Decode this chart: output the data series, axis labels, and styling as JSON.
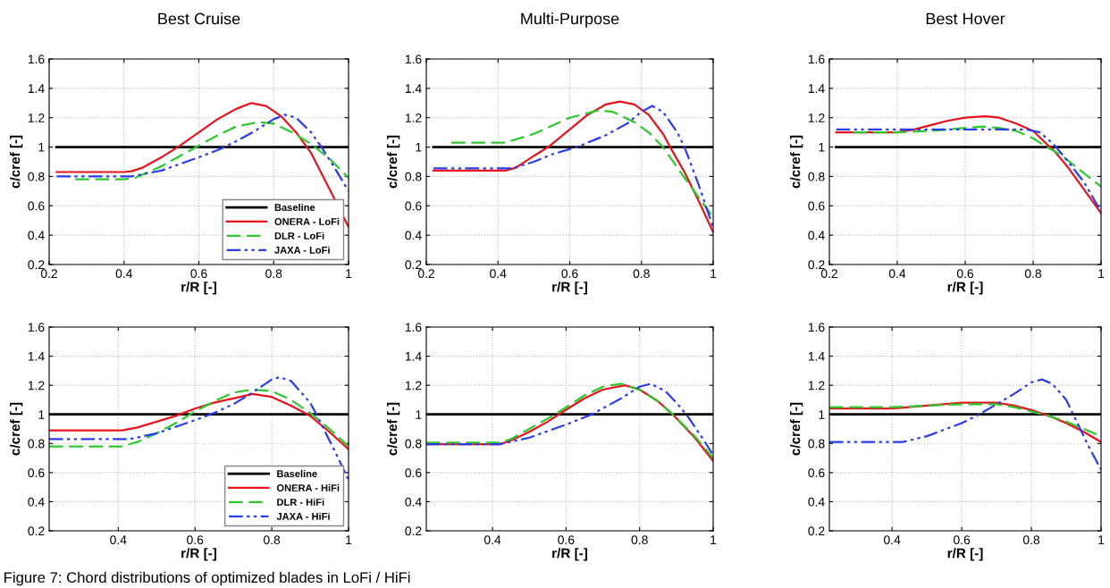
{
  "chart_data": [
    {
      "type": "line",
      "title": "Best Cruise",
      "xlabel": "r/R [-]",
      "ylabel": "c/cref [-]",
      "xlim": [
        0.2,
        1
      ],
      "xticks": [
        0.2,
        0.4,
        0.6,
        0.8,
        1
      ],
      "ylim": [
        0.2,
        1.6
      ],
      "yticks": [
        0.2,
        0.4,
        0.6,
        0.8,
        1,
        1.2,
        1.4,
        1.6
      ],
      "grid": true,
      "legend": "bottom right",
      "annotations": [
        "Figure 7: Chord distributions of optimized blades in LoFi / HiFi"
      ],
      "series": [
        {
          "name": "Baseline",
          "color": "#000000",
          "line_style": "solid",
          "x": [
            0.22,
            1
          ],
          "values": [
            1,
            1
          ]
        },
        {
          "name": "ONERA - LoFi",
          "color": "#e8141c",
          "line_style": "solid",
          "x": [
            0.22,
            0.3,
            0.4,
            0.42,
            0.45,
            0.5,
            0.55,
            0.6,
            0.65,
            0.7,
            0.74,
            0.78,
            0.82,
            0.86,
            0.9,
            0.95,
            1
          ],
          "values": [
            0.83,
            0.83,
            0.83,
            0.835,
            0.86,
            0.93,
            1.01,
            1.1,
            1.19,
            1.26,
            1.3,
            1.28,
            1.21,
            1.1,
            0.96,
            0.71,
            0.455
          ]
        },
        {
          "name": "DLR - LoFi",
          "color": "#2ec82e",
          "line_style": "dashed",
          "x": [
            0.27,
            0.3,
            0.4,
            0.43,
            0.5,
            0.55,
            0.6,
            0.65,
            0.7,
            0.76,
            0.8,
            0.85,
            0.9,
            0.95,
            1
          ],
          "values": [
            0.78,
            0.78,
            0.78,
            0.79,
            0.87,
            0.94,
            1.01,
            1.08,
            1.14,
            1.17,
            1.16,
            1.1,
            1.02,
            0.92,
            0.79
          ]
        },
        {
          "name": "JAXA - LoFi",
          "color": "#2a3cf0",
          "line_style": "dashdot",
          "x": [
            0.22,
            0.3,
            0.42,
            0.5,
            0.6,
            0.66,
            0.7,
            0.75,
            0.8,
            0.83,
            0.86,
            0.9,
            0.93,
            0.96,
            1
          ],
          "values": [
            0.8,
            0.8,
            0.8,
            0.84,
            0.93,
            0.99,
            1.04,
            1.11,
            1.19,
            1.22,
            1.2,
            1.1,
            0.99,
            0.87,
            0.7
          ]
        }
      ]
    },
    {
      "type": "line",
      "title": "Multi-Purpose",
      "xlabel": "r/R [-]",
      "ylabel": "c/cref [-]",
      "xlim": [
        0.2,
        1
      ],
      "xticks": [
        0.2,
        0.4,
        0.6,
        0.8,
        1
      ],
      "ylim": [
        0.2,
        1.6
      ],
      "yticks": [
        0.2,
        0.4,
        0.6,
        0.8,
        1,
        1.2,
        1.4,
        1.6
      ],
      "grid": true,
      "series": [
        {
          "color": "#000000",
          "line_style": "solid",
          "x": [
            0.22,
            1
          ],
          "values": [
            1,
            1
          ]
        },
        {
          "color": "#e8141c",
          "line_style": "solid",
          "x": [
            0.22,
            0.3,
            0.42,
            0.45,
            0.5,
            0.54,
            0.6,
            0.65,
            0.7,
            0.74,
            0.78,
            0.82,
            0.86,
            0.88,
            0.92,
            0.96,
            1
          ],
          "values": [
            0.84,
            0.84,
            0.84,
            0.86,
            0.94,
            1.0,
            1.12,
            1.22,
            1.29,
            1.31,
            1.29,
            1.22,
            1.09,
            1.0,
            0.83,
            0.63,
            0.42
          ]
        },
        {
          "color": "#2ec82e",
          "line_style": "dashed",
          "x": [
            0.27,
            0.35,
            0.42,
            0.5,
            0.6,
            0.68,
            0.72,
            0.78,
            0.82,
            0.86,
            0.9,
            0.95,
            1
          ],
          "values": [
            1.03,
            1.03,
            1.03,
            1.09,
            1.2,
            1.25,
            1.24,
            1.17,
            1.1,
            1.0,
            0.86,
            0.69,
            0.52
          ]
        },
        {
          "color": "#2a3cf0",
          "line_style": "dashdot",
          "x": [
            0.22,
            0.3,
            0.44,
            0.5,
            0.55,
            0.62,
            0.7,
            0.76,
            0.8,
            0.83,
            0.86,
            0.9,
            0.92,
            0.96,
            1
          ],
          "values": [
            0.855,
            0.855,
            0.855,
            0.9,
            0.95,
            1.0,
            1.08,
            1.16,
            1.24,
            1.28,
            1.24,
            1.1,
            1.0,
            0.74,
            0.45
          ]
        }
      ]
    },
    {
      "type": "line",
      "title": "Best Hover",
      "xlabel": "r/R [-]",
      "ylabel": "c/cref [-]",
      "xlim": [
        0.2,
        1
      ],
      "xticks": [
        0.2,
        0.4,
        0.6,
        0.8,
        1
      ],
      "ylim": [
        0.2,
        1.6
      ],
      "yticks": [
        0.2,
        0.4,
        0.6,
        0.8,
        1,
        1.2,
        1.4,
        1.6
      ],
      "grid": true,
      "series": [
        {
          "color": "#000000",
          "line_style": "solid",
          "x": [
            0.22,
            1
          ],
          "values": [
            1,
            1
          ]
        },
        {
          "color": "#e8141c",
          "line_style": "solid",
          "x": [
            0.22,
            0.3,
            0.4,
            0.45,
            0.5,
            0.55,
            0.6,
            0.66,
            0.7,
            0.75,
            0.8,
            0.84,
            0.86,
            0.9,
            0.95,
            1
          ],
          "values": [
            1.1,
            1.1,
            1.1,
            1.12,
            1.15,
            1.18,
            1.2,
            1.21,
            1.2,
            1.16,
            1.11,
            1.02,
            0.98,
            0.87,
            0.71,
            0.55
          ]
        },
        {
          "color": "#2ec82e",
          "line_style": "dashed",
          "x": [
            0.27,
            0.4,
            0.5,
            0.6,
            0.65,
            0.7,
            0.75,
            0.8,
            0.84,
            0.88,
            0.94,
            1
          ],
          "values": [
            1.1,
            1.1,
            1.11,
            1.13,
            1.14,
            1.13,
            1.11,
            1.06,
            1.0,
            0.95,
            0.84,
            0.73
          ]
        },
        {
          "color": "#2a3cf0",
          "line_style": "dashdot",
          "x": [
            0.22,
            0.4,
            0.5,
            0.6,
            0.7,
            0.78,
            0.82,
            0.86,
            0.9,
            0.95,
            1
          ],
          "values": [
            1.12,
            1.12,
            1.12,
            1.12,
            1.12,
            1.12,
            1.1,
            1.02,
            0.91,
            0.76,
            0.56
          ]
        }
      ]
    },
    {
      "type": "line",
      "xlabel": "r/R [-]",
      "ylabel": "c/cref [-]",
      "xlim": [
        0.22,
        1
      ],
      "xticks": [
        0.4,
        0.6,
        0.8,
        1
      ],
      "ylim": [
        0.2,
        1.6
      ],
      "yticks": [
        0.2,
        0.4,
        0.6,
        0.8,
        1,
        1.2,
        1.4,
        1.6
      ],
      "grid": true,
      "legend": "bottom right",
      "series": [
        {
          "name": "Baseline",
          "color": "#000000",
          "line_style": "solid",
          "x": [
            0.22,
            1
          ],
          "values": [
            1,
            1
          ]
        },
        {
          "name": "ONERA - HiFi",
          "color": "#e8141c",
          "line_style": "solid",
          "x": [
            0.22,
            0.3,
            0.41,
            0.45,
            0.5,
            0.55,
            0.6,
            0.65,
            0.7,
            0.75,
            0.8,
            0.85,
            0.9,
            0.95,
            1
          ],
          "values": [
            0.89,
            0.89,
            0.89,
            0.91,
            0.95,
            0.99,
            1.04,
            1.08,
            1.11,
            1.14,
            1.12,
            1.06,
            0.99,
            0.88,
            0.76
          ]
        },
        {
          "name": "DLR - HiFi",
          "color": "#2ec82e",
          "line_style": "dashed",
          "x": [
            0.22,
            0.3,
            0.41,
            0.45,
            0.5,
            0.55,
            0.6,
            0.65,
            0.7,
            0.75,
            0.8,
            0.85,
            0.9,
            0.95,
            1
          ],
          "values": [
            0.78,
            0.78,
            0.78,
            0.81,
            0.87,
            0.94,
            1.02,
            1.09,
            1.15,
            1.17,
            1.16,
            1.1,
            1.01,
            0.9,
            0.78
          ]
        },
        {
          "name": "JAXA - HiFi",
          "color": "#2a3cf0",
          "line_style": "dashdot",
          "x": [
            0.22,
            0.3,
            0.43,
            0.5,
            0.6,
            0.65,
            0.7,
            0.75,
            0.8,
            0.82,
            0.85,
            0.9,
            0.92,
            0.96,
            1
          ],
          "values": [
            0.83,
            0.83,
            0.83,
            0.87,
            0.96,
            1.01,
            1.07,
            1.15,
            1.24,
            1.255,
            1.23,
            1.08,
            0.98,
            0.77,
            0.55
          ]
        }
      ]
    },
    {
      "type": "line",
      "xlabel": "r/R [-]",
      "ylabel": "c/cref [-]",
      "xlim": [
        0.22,
        1
      ],
      "xticks": [
        0.4,
        0.6,
        0.8,
        1
      ],
      "ylim": [
        0.2,
        1.6
      ],
      "yticks": [
        0.2,
        0.4,
        0.6,
        0.8,
        1,
        1.2,
        1.4,
        1.6
      ],
      "grid": true,
      "series": [
        {
          "color": "#000000",
          "line_style": "solid",
          "x": [
            0.22,
            1
          ],
          "values": [
            1,
            1
          ]
        },
        {
          "color": "#e8141c",
          "line_style": "solid",
          "x": [
            0.22,
            0.3,
            0.42,
            0.45,
            0.5,
            0.55,
            0.58,
            0.65,
            0.7,
            0.76,
            0.8,
            0.85,
            0.89,
            0.95,
            1
          ],
          "values": [
            0.795,
            0.795,
            0.795,
            0.82,
            0.88,
            0.95,
            1.0,
            1.11,
            1.17,
            1.2,
            1.17,
            1.09,
            1.0,
            0.84,
            0.68
          ]
        },
        {
          "color": "#2ec82e",
          "line_style": "dashed",
          "x": [
            0.22,
            0.42,
            0.45,
            0.5,
            0.57,
            0.65,
            0.7,
            0.75,
            0.8,
            0.85,
            0.89,
            0.95,
            1
          ],
          "values": [
            0.805,
            0.805,
            0.83,
            0.9,
            1.0,
            1.13,
            1.19,
            1.21,
            1.17,
            1.09,
            1.0,
            0.85,
            0.7
          ]
        },
        {
          "color": "#2a3cf0",
          "line_style": "dashdot",
          "x": [
            0.22,
            0.42,
            0.5,
            0.6,
            0.67,
            0.75,
            0.8,
            0.83,
            0.87,
            0.9,
            0.93,
            0.97,
            1
          ],
          "values": [
            0.795,
            0.795,
            0.84,
            0.93,
            1.0,
            1.11,
            1.19,
            1.21,
            1.16,
            1.08,
            0.99,
            0.84,
            0.72
          ]
        }
      ]
    },
    {
      "type": "line",
      "xlabel": "r/R [-]",
      "ylabel": "c/cref [-]",
      "xlim": [
        0.22,
        1
      ],
      "xticks": [
        0.4,
        0.6,
        0.8,
        1
      ],
      "ylim": [
        0.2,
        1.6
      ],
      "yticks": [
        0.2,
        0.4,
        0.6,
        0.8,
        1,
        1.2,
        1.4,
        1.6
      ],
      "grid": true,
      "series": [
        {
          "color": "#000000",
          "line_style": "solid",
          "x": [
            0.22,
            1
          ],
          "values": [
            1,
            1
          ]
        },
        {
          "color": "#e8141c",
          "line_style": "solid",
          "x": [
            0.22,
            0.4,
            0.5,
            0.6,
            0.7,
            0.75,
            0.8,
            0.85,
            0.9,
            0.95,
            1
          ],
          "values": [
            1.04,
            1.04,
            1.06,
            1.08,
            1.08,
            1.06,
            1.03,
            0.99,
            0.94,
            0.88,
            0.81
          ]
        },
        {
          "color": "#2ec82e",
          "line_style": "dashed",
          "x": [
            0.22,
            0.4,
            0.5,
            0.6,
            0.7,
            0.75,
            0.8,
            0.85,
            0.9,
            0.95,
            1
          ],
          "values": [
            1.05,
            1.05,
            1.06,
            1.07,
            1.07,
            1.05,
            1.02,
            0.99,
            0.95,
            0.9,
            0.85
          ]
        },
        {
          "color": "#2a3cf0",
          "line_style": "dashdot",
          "x": [
            0.22,
            0.3,
            0.43,
            0.5,
            0.6,
            0.65,
            0.7,
            0.75,
            0.8,
            0.83,
            0.86,
            0.9,
            0.92,
            0.96,
            1
          ],
          "values": [
            0.81,
            0.81,
            0.81,
            0.85,
            0.94,
            1.0,
            1.07,
            1.14,
            1.22,
            1.24,
            1.21,
            1.1,
            1.0,
            0.8,
            0.62
          ]
        }
      ]
    }
  ]
}
